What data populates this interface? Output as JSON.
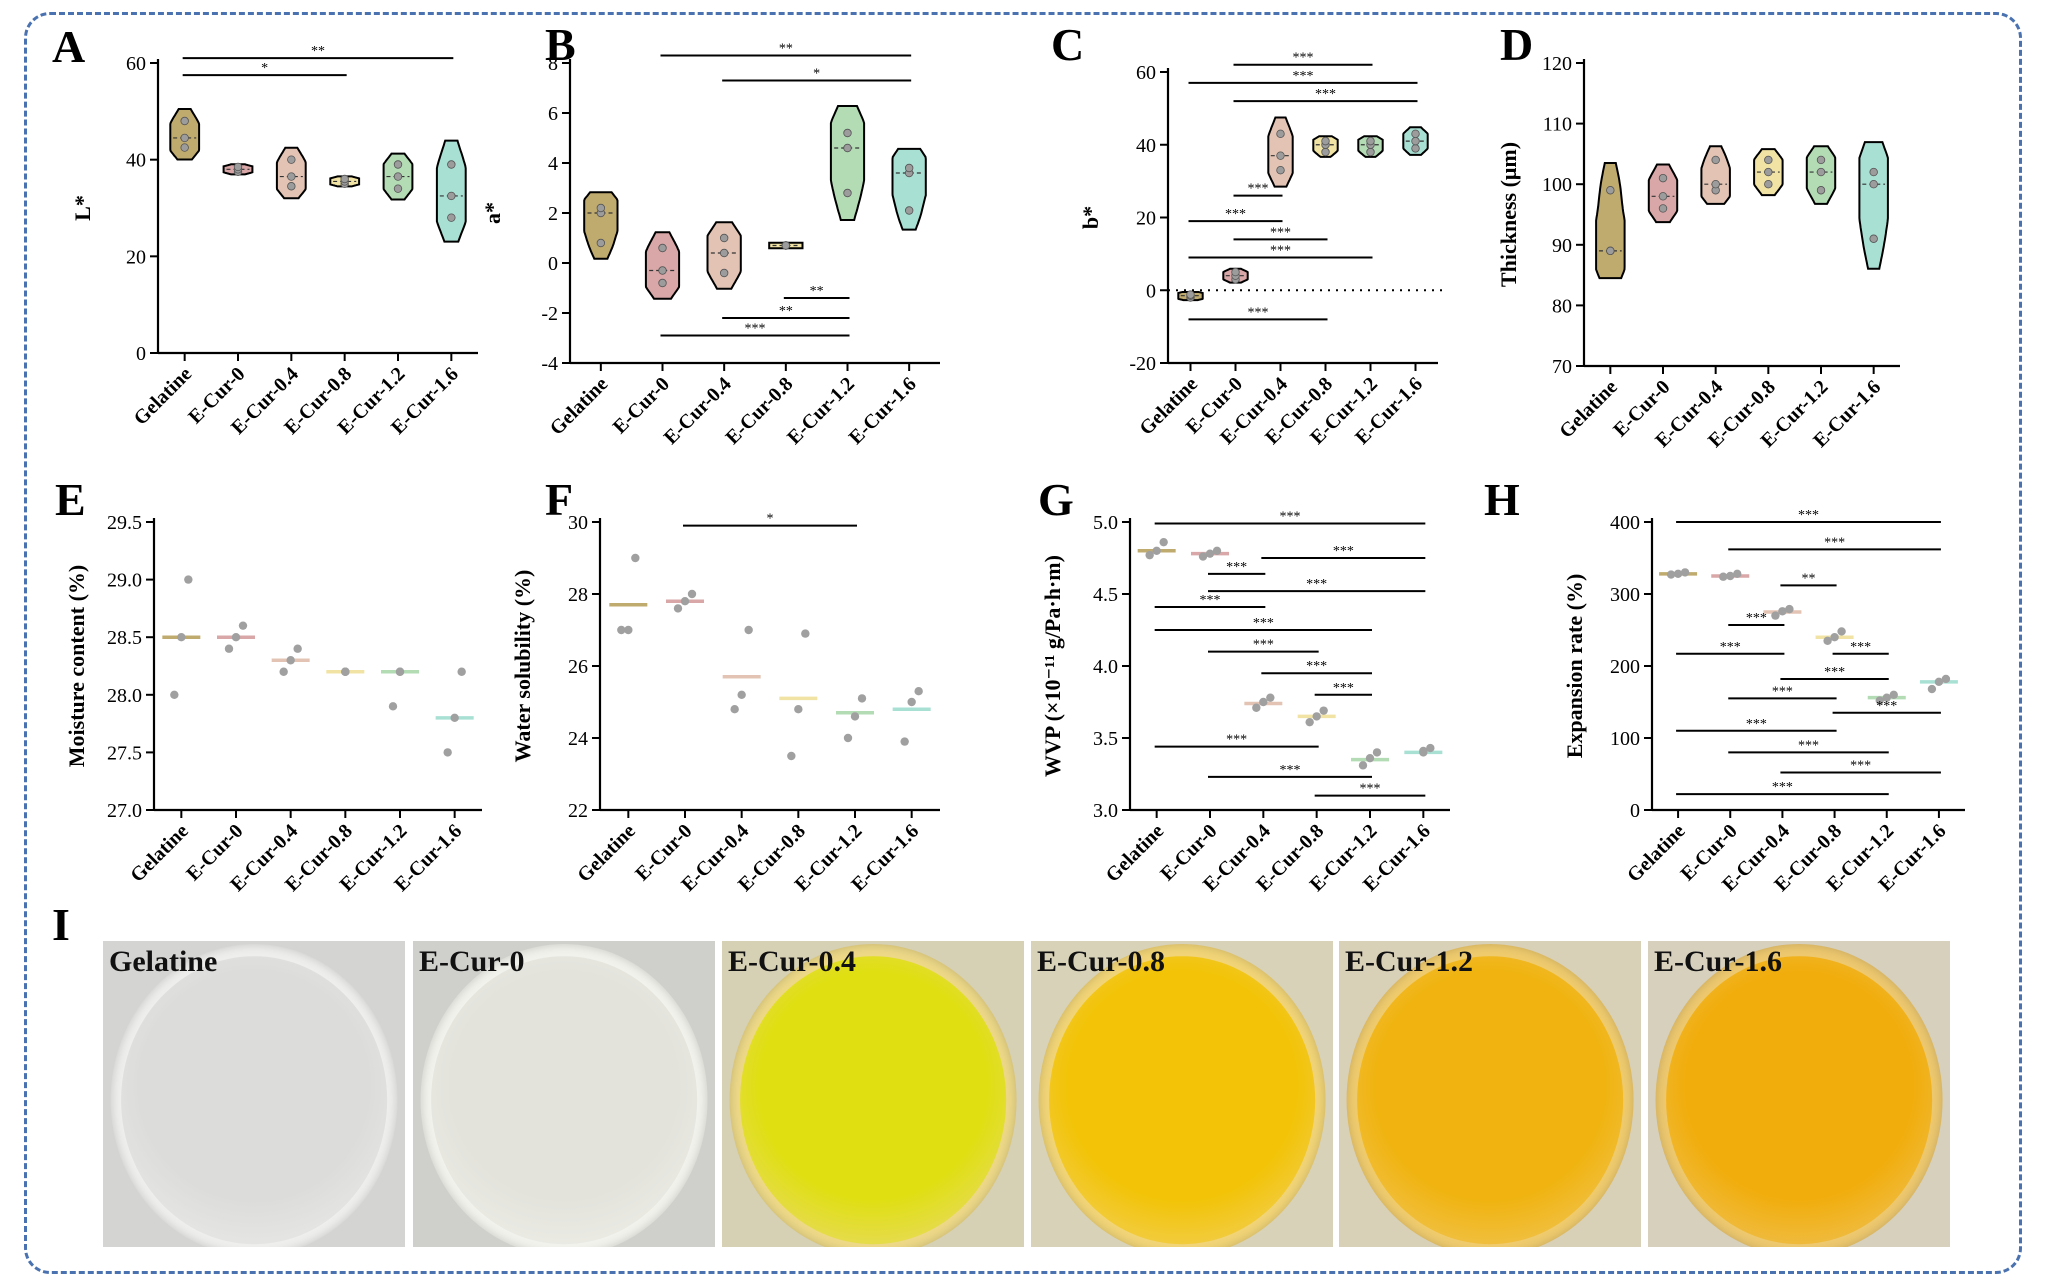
{
  "chart_data": [
    {
      "panel": "A",
      "type": "violin",
      "ylabel": "L*",
      "ylim": [
        0,
        60
      ],
      "yticks": [
        0,
        20,
        40,
        60
      ],
      "categories": [
        "Gelatine",
        "E-Cur-0",
        "E-Cur-0.4",
        "E-Cur-0.8",
        "E-Cur-1.2",
        "E-Cur-1.6"
      ],
      "colors": [
        "#c0ab6f",
        "#d9a7a7",
        "#e3c4b4",
        "#f0e3a4",
        "#b3dcb5",
        "#a9e0d4"
      ],
      "points": [
        [
          42.5,
          44.5,
          48
        ],
        [
          37.5,
          38,
          38.5
        ],
        [
          34.5,
          36.5,
          40
        ],
        [
          35,
          35.5,
          36
        ],
        [
          34,
          36.5,
          39
        ],
        [
          28,
          32.5,
          39
        ]
      ],
      "sig": [
        {
          "from": 0,
          "to": 3,
          "label": "*",
          "y": 57.5
        },
        {
          "from": 0,
          "to": 5,
          "label": "**",
          "y": 61
        }
      ]
    },
    {
      "panel": "B",
      "type": "violin",
      "ylabel": "a*",
      "ylim": [
        -4,
        8
      ],
      "yticks": [
        -4,
        -2,
        0,
        2,
        4,
        6,
        8
      ],
      "categories": [
        "Gelatine",
        "E-Cur-0",
        "E-Cur-0.4",
        "E-Cur-0.8",
        "E-Cur-1.2",
        "E-Cur-1.6"
      ],
      "colors": [
        "#c0ab6f",
        "#d9a7a7",
        "#e3c4b4",
        "#f0e3a4",
        "#b3dcb5",
        "#a9e0d4"
      ],
      "points": [
        [
          0.8,
          2.0,
          2.2
        ],
        [
          -0.8,
          -0.3,
          0.6
        ],
        [
          -0.4,
          0.4,
          1.0
        ],
        [
          0.7,
          0.7,
          0.7
        ],
        [
          2.8,
          4.6,
          5.2
        ],
        [
          2.1,
          3.6,
          3.8
        ]
      ],
      "sig": [
        {
          "from": 1,
          "to": 5,
          "label": "**",
          "y": 8.3
        },
        {
          "from": 2,
          "to": 5,
          "label": "*",
          "y": 7.3
        },
        {
          "from": 3,
          "to": 4,
          "label": "**",
          "y": -1.4
        },
        {
          "from": 2,
          "to": 4,
          "label": "**",
          "y": -2.2
        },
        {
          "from": 1,
          "to": 4,
          "label": "***",
          "y": -2.9
        }
      ]
    },
    {
      "panel": "C",
      "type": "violin",
      "ylabel": "b*",
      "ylim": [
        -20,
        60
      ],
      "yticks": [
        -20,
        0,
        20,
        40,
        60
      ],
      "zero_line": true,
      "categories": [
        "Gelatine",
        "E-Cur-0",
        "E-Cur-0.4",
        "E-Cur-0.8",
        "E-Cur-1.2",
        "E-Cur-1.6"
      ],
      "colors": [
        "#c0ab6f",
        "#d9a7a7",
        "#e3c4b4",
        "#f0e3a4",
        "#b3dcb5",
        "#a9e0d4"
      ],
      "points": [
        [
          -2,
          -1.5,
          -1.2
        ],
        [
          3,
          4,
          5
        ],
        [
          33,
          37,
          43
        ],
        [
          38,
          40,
          41
        ],
        [
          38,
          40,
          41
        ],
        [
          39,
          41,
          43
        ]
      ],
      "sig": [
        {
          "from": 1,
          "to": 4,
          "label": "***",
          "y": 62
        },
        {
          "from": 0,
          "to": 5,
          "label": "***",
          "y": 57
        },
        {
          "from": 1,
          "to": 5,
          "label": "***",
          "y": 52
        },
        {
          "from": 1,
          "to": 2,
          "label": "***",
          "y": 26
        },
        {
          "from": 0,
          "to": 2,
          "label": "***",
          "y": 19
        },
        {
          "from": 1,
          "to": 3,
          "label": "***",
          "y": 14
        },
        {
          "from": 0,
          "to": 4,
          "label": "***",
          "y": 9
        },
        {
          "from": 0,
          "to": 3,
          "label": "***",
          "y": -8
        }
      ]
    },
    {
      "panel": "D",
      "type": "violin",
      "ylabel": "Thickness (μm)",
      "ylim": [
        70,
        120
      ],
      "yticks": [
        70,
        80,
        90,
        100,
        110,
        120
      ],
      "categories": [
        "Gelatine",
        "E-Cur-0",
        "E-Cur-0.4",
        "E-Cur-0.8",
        "E-Cur-1.2",
        "E-Cur-1.6"
      ],
      "colors": [
        "#c0ab6f",
        "#d9a7a7",
        "#e3c4b4",
        "#f0e3a4",
        "#b3dcb5",
        "#a9e0d4"
      ],
      "points": [
        [
          89,
          89,
          99
        ],
        [
          96,
          98,
          101
        ],
        [
          99,
          100,
          104
        ],
        [
          100,
          102,
          104
        ],
        [
          99,
          102,
          104
        ],
        [
          91,
          100,
          102
        ]
      ],
      "sig": []
    },
    {
      "panel": "E",
      "type": "strip",
      "ylabel": "Moisture content (%)",
      "ylim": [
        27.0,
        29.5
      ],
      "yticks": [
        "27.0",
        "27.5",
        "28.0",
        "28.5",
        "29.0",
        "29.5"
      ],
      "categories": [
        "Gelatine",
        "E-Cur-0",
        "E-Cur-0.4",
        "E-Cur-0.8",
        "E-Cur-1.2",
        "E-Cur-1.6"
      ],
      "colors": [
        "#c0ab6f",
        "#d9a7a7",
        "#e3c4b4",
        "#f0e3a4",
        "#b3dcb5",
        "#a9e0d4"
      ],
      "means": [
        28.5,
        28.5,
        28.3,
        28.2,
        28.2,
        27.8
      ],
      "points": [
        [
          28.0,
          28.5,
          29.0
        ],
        [
          28.4,
          28.5,
          28.6
        ],
        [
          28.2,
          28.3,
          28.4
        ],
        [
          28.2,
          28.2,
          28.2
        ],
        [
          27.9,
          28.2,
          28.2
        ],
        [
          27.5,
          27.8,
          28.2
        ]
      ],
      "sig": []
    },
    {
      "panel": "F",
      "type": "strip",
      "ylabel": "Water solubility (%)",
      "ylim": [
        22,
        30
      ],
      "yticks": [
        "22",
        "24",
        "26",
        "28",
        "30"
      ],
      "categories": [
        "Gelatine",
        "E-Cur-0",
        "E-Cur-0.4",
        "E-Cur-0.8",
        "E-Cur-1.2",
        "E-Cur-1.6"
      ],
      "colors": [
        "#c0ab6f",
        "#d9a7a7",
        "#e3c4b4",
        "#f0e3a4",
        "#b3dcb5",
        "#a9e0d4"
      ],
      "means": [
        27.7,
        27.8,
        25.7,
        25.1,
        24.7,
        24.8
      ],
      "points": [
        [
          27.0,
          27.0,
          29.0
        ],
        [
          27.6,
          27.8,
          28.0
        ],
        [
          24.8,
          25.2,
          27.0
        ],
        [
          23.5,
          24.8,
          26.9
        ],
        [
          24.0,
          24.6,
          25.1
        ],
        [
          23.9,
          25.0,
          25.3
        ]
      ],
      "sig": [
        {
          "from": 1,
          "to": 4,
          "label": "*",
          "y": 29.9
        }
      ]
    },
    {
      "panel": "G",
      "type": "strip",
      "ylabel": "WVP (×10⁻¹¹ g/Pa·h·m)",
      "ylim": [
        3.0,
        5.0
      ],
      "yticks": [
        "3.0",
        "3.5",
        "4.0",
        "4.5",
        "5.0"
      ],
      "categories": [
        "Gelatine",
        "E-Cur-0",
        "E-Cur-0.4",
        "E-Cur-0.8",
        "E-Cur-1.2",
        "E-Cur-1.6"
      ],
      "colors": [
        "#c0ab6f",
        "#d9a7a7",
        "#e3c4b4",
        "#f0e3a4",
        "#b3dcb5",
        "#a9e0d4"
      ],
      "means": [
        4.8,
        4.78,
        3.74,
        3.65,
        3.35,
        3.4
      ],
      "points": [
        [
          4.77,
          4.8,
          4.86
        ],
        [
          4.76,
          4.78,
          4.8
        ],
        [
          3.71,
          3.75,
          3.78
        ],
        [
          3.61,
          3.65,
          3.69
        ],
        [
          3.31,
          3.36,
          3.4
        ],
        [
          3.4,
          3.41,
          3.43
        ]
      ],
      "sig": [
        {
          "from": 0,
          "to": 5,
          "label": "***",
          "y": 4.99
        },
        {
          "from": 2,
          "to": 5,
          "label": "***",
          "y": 4.75
        },
        {
          "from": 1,
          "to": 2,
          "label": "***",
          "y": 4.64
        },
        {
          "from": 1,
          "to": 5,
          "label": "***",
          "y": 4.52
        },
        {
          "from": 0,
          "to": 2,
          "label": "***",
          "y": 4.41
        },
        {
          "from": 0,
          "to": 4,
          "label": "***",
          "y": 4.25
        },
        {
          "from": 1,
          "to": 3,
          "label": "***",
          "y": 4.1
        },
        {
          "from": 2,
          "to": 4,
          "label": "***",
          "y": 3.95
        },
        {
          "from": 3,
          "to": 4,
          "label": "***",
          "y": 3.8
        },
        {
          "from": 0,
          "to": 3,
          "label": "***",
          "y": 3.44
        },
        {
          "from": 1,
          "to": 4,
          "label": "***",
          "y": 3.23
        },
        {
          "from": 3,
          "to": 5,
          "label": "***",
          "y": 3.1
        }
      ]
    },
    {
      "panel": "H",
      "type": "strip",
      "ylabel": "Expansion rate (%)",
      "ylim": [
        0,
        400
      ],
      "yticks": [
        "0",
        "100",
        "200",
        "300",
        "400"
      ],
      "categories": [
        "Gelatine",
        "E-Cur-0",
        "E-Cur-0.4",
        "E-Cur-0.8",
        "E-Cur-1.2",
        "E-Cur-1.6"
      ],
      "colors": [
        "#c0ab6f",
        "#d9a7a7",
        "#e3c4b4",
        "#f0e3a4",
        "#b3dcb5",
        "#a9e0d4"
      ],
      "means": [
        328,
        325,
        275,
        240,
        156,
        178
      ],
      "points": [
        [
          327,
          328,
          330
        ],
        [
          324,
          325,
          328
        ],
        [
          270,
          276,
          279
        ],
        [
          235,
          240,
          248
        ],
        [
          152,
          156,
          160
        ],
        [
          168,
          178,
          182
        ]
      ],
      "sig": [
        {
          "from": 0,
          "to": 5,
          "label": "***",
          "y": 400
        },
        {
          "from": 1,
          "to": 5,
          "label": "***",
          "y": 362
        },
        {
          "from": 2,
          "to": 3,
          "label": "**",
          "y": 312
        },
        {
          "from": 1,
          "to": 2,
          "label": "***",
          "y": 257
        },
        {
          "from": 0,
          "to": 2,
          "label": "***",
          "y": 217
        },
        {
          "from": 3,
          "to": 4,
          "label": "***",
          "y": 217
        },
        {
          "from": 2,
          "to": 4,
          "label": "***",
          "y": 182
        },
        {
          "from": 1,
          "to": 3,
          "label": "***",
          "y": 155
        },
        {
          "from": 3,
          "to": 5,
          "label": "***",
          "y": 135
        },
        {
          "from": 0,
          "to": 3,
          "label": "***",
          "y": 110
        },
        {
          "from": 1,
          "to": 4,
          "label": "***",
          "y": 80
        },
        {
          "from": 2,
          "to": 5,
          "label": "***",
          "y": 52
        },
        {
          "from": 0,
          "to": 4,
          "label": "***",
          "y": 22
        }
      ]
    }
  ],
  "panel_I": {
    "letter": "I",
    "photos": [
      {
        "label": "Gelatine",
        "bg": "#d4d4d2",
        "dish": "#dcdcda",
        "rim": "#eeeeec",
        "mark": ""
      },
      {
        "label": "E-Cur-0",
        "bg": "#cfcfcc",
        "dish": "#e3e3dc",
        "rim": "#f2f2ec",
        "mark": ""
      },
      {
        "label": "E-Cur-0.4",
        "bg": "#d6d0b4",
        "dish": "#dfdf12",
        "rim": "#ecd887",
        "mark": "4"
      },
      {
        "label": "E-Cur-0.8",
        "bg": "#d8d2b8",
        "dish": "#f2c306",
        "rim": "#f1d477",
        "mark": "8"
      },
      {
        "label": "E-Cur-1.2",
        "bg": "#d9d0b8",
        "dish": "#f0b30f",
        "rim": "#efcb6e",
        "mark": "1.2"
      },
      {
        "label": "E-Cur-1.6",
        "bg": "#d6d0bd",
        "dish": "#f1ad0c",
        "rim": "#edc86f",
        "mark": "1.6"
      }
    ]
  }
}
